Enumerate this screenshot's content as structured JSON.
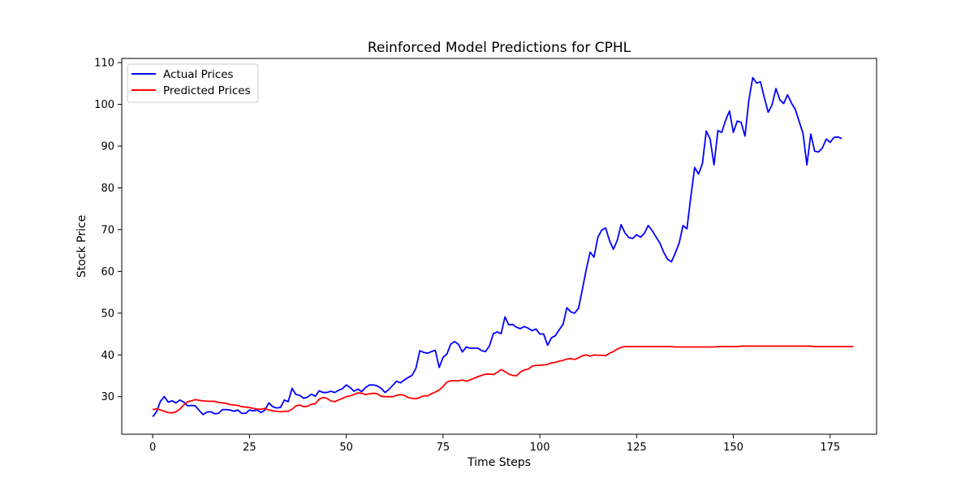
{
  "chart_data": {
    "type": "line",
    "title": "Reinforced Model Predictions for CPHL",
    "xlabel": "Time Steps",
    "ylabel": "Stock Price",
    "xlim": [
      -8,
      187
    ],
    "ylim": [
      21,
      111
    ],
    "xticks": [
      0,
      25,
      50,
      75,
      100,
      125,
      150,
      175
    ],
    "yticks": [
      30,
      40,
      50,
      60,
      70,
      80,
      90,
      100,
      110
    ],
    "grid": false,
    "legend": "upper-left",
    "series": [
      {
        "name": "Actual Prices",
        "color": "#0000ff",
        "values": [
          25.2,
          26.4,
          28.9,
          30.0,
          28.7,
          29.0,
          28.5,
          29.2,
          28.7,
          27.8,
          27.9,
          27.8,
          26.7,
          25.7,
          26.3,
          26.4,
          25.9,
          26.0,
          26.9,
          26.9,
          26.8,
          26.5,
          26.8,
          26.0,
          26.0,
          26.8,
          26.6,
          26.8,
          26.2,
          26.8,
          28.5,
          27.6,
          27.3,
          27.4,
          29.2,
          28.8,
          32.0,
          30.5,
          30.3,
          29.6,
          29.9,
          30.6,
          30.1,
          31.4,
          31.0,
          31.0,
          31.3,
          31.0,
          31.5,
          31.9,
          32.8,
          32.2,
          31.3,
          31.8,
          31.2,
          32.2,
          32.8,
          32.8,
          32.6,
          32.0,
          31.0,
          31.7,
          32.7,
          33.7,
          33.3,
          34.0,
          34.6,
          35.1,
          36.8,
          41.0,
          40.6,
          40.4,
          40.8,
          41.1,
          37.0,
          39.4,
          40.2,
          42.6,
          43.2,
          42.5,
          40.7,
          41.9,
          41.6,
          41.6,
          41.6,
          41.0,
          40.8,
          42.2,
          45.1,
          45.5,
          45.1,
          49.1,
          47.2,
          47.3,
          46.6,
          46.3,
          46.8,
          46.4,
          45.8,
          46.2,
          45.0,
          45.0,
          42.3,
          44.1,
          44.6,
          46.0,
          47.3,
          51.3,
          50.3,
          50.0,
          51.2,
          55.7,
          60.5,
          64.6,
          63.4,
          68.2,
          69.9,
          70.4,
          67.4,
          65.3,
          67.4,
          71.2,
          69.2,
          68.1,
          67.9,
          68.8,
          68.2,
          69.1,
          71.0,
          69.8,
          68.3,
          66.8,
          64.6,
          62.9,
          62.3,
          64.4,
          66.8,
          71.0,
          70.2,
          77.8,
          84.9,
          83.3,
          85.8,
          93.6,
          91.7,
          85.5,
          93.7,
          93.3,
          96.2,
          98.4,
          93.3,
          96.0,
          95.7,
          92.4,
          101.0,
          106.4,
          105.1,
          105.4,
          101.6,
          98.1,
          99.9,
          103.8,
          101.1,
          100.2,
          102.3,
          100.3,
          98.8,
          95.9,
          93.0,
          85.5,
          92.9,
          88.8,
          88.6,
          89.6,
          91.7,
          90.9,
          92.1,
          92.2,
          91.8
        ]
      },
      {
        "name": "Predicted Prices",
        "color": "#ff0000",
        "values": [
          26.9,
          27.1,
          26.8,
          26.5,
          26.2,
          26.1,
          26.4,
          27.0,
          28.0,
          28.8,
          29.0,
          29.3,
          29.1,
          29.0,
          28.9,
          28.9,
          28.9,
          28.6,
          28.5,
          28.4,
          28.1,
          28.0,
          27.9,
          27.6,
          27.5,
          27.4,
          27.2,
          27.0,
          27.0,
          27.2,
          26.8,
          26.6,
          26.5,
          26.4,
          26.5,
          26.5,
          27.0,
          27.8,
          28.0,
          27.6,
          27.7,
          28.2,
          28.3,
          29.4,
          29.8,
          29.6,
          29.0,
          28.8,
          29.2,
          29.6,
          30.0,
          30.2,
          30.5,
          30.9,
          30.8,
          30.5,
          30.7,
          30.8,
          30.7,
          30.1,
          30.0,
          30.0,
          30.0,
          30.3,
          30.5,
          30.3,
          29.8,
          29.6,
          29.5,
          29.8,
          30.2,
          30.2,
          30.7,
          31.1,
          31.6,
          32.4,
          33.5,
          33.8,
          33.8,
          33.8,
          34.0,
          33.7,
          34.0,
          34.4,
          34.8,
          35.1,
          35.4,
          35.4,
          35.3,
          35.8,
          36.5,
          36.0,
          35.4,
          35.1,
          35.0,
          35.9,
          36.4,
          36.6,
          37.3,
          37.5,
          37.5,
          37.6,
          37.7,
          38.1,
          38.2,
          38.5,
          38.7,
          39.0,
          39.1,
          38.9,
          39.3,
          39.8,
          40.0,
          39.7,
          40.0,
          39.9,
          39.9,
          39.8,
          40.4,
          40.8,
          41.4,
          41.8,
          42.0,
          42.0,
          42.0,
          42.0,
          42.0,
          42.0,
          42.0,
          42.0,
          42.0,
          42.0,
          42.0,
          42.0,
          42.0,
          41.9,
          41.9,
          41.9,
          41.9,
          41.9,
          41.9,
          41.9,
          41.9,
          41.9,
          41.9,
          41.9,
          42.0,
          42.0,
          42.0,
          42.0,
          42.0,
          42.0,
          42.1,
          42.1,
          42.1,
          42.1,
          42.1,
          42.1,
          42.1,
          42.1,
          42.1,
          42.1,
          42.1,
          42.1,
          42.1,
          42.1,
          42.1,
          42.1,
          42.1,
          42.1,
          42.1,
          42.0,
          42.0,
          42.0,
          42.0,
          42.0,
          42.0,
          42.0,
          42.0,
          42.0,
          42.0,
          42.0
        ]
      }
    ]
  }
}
